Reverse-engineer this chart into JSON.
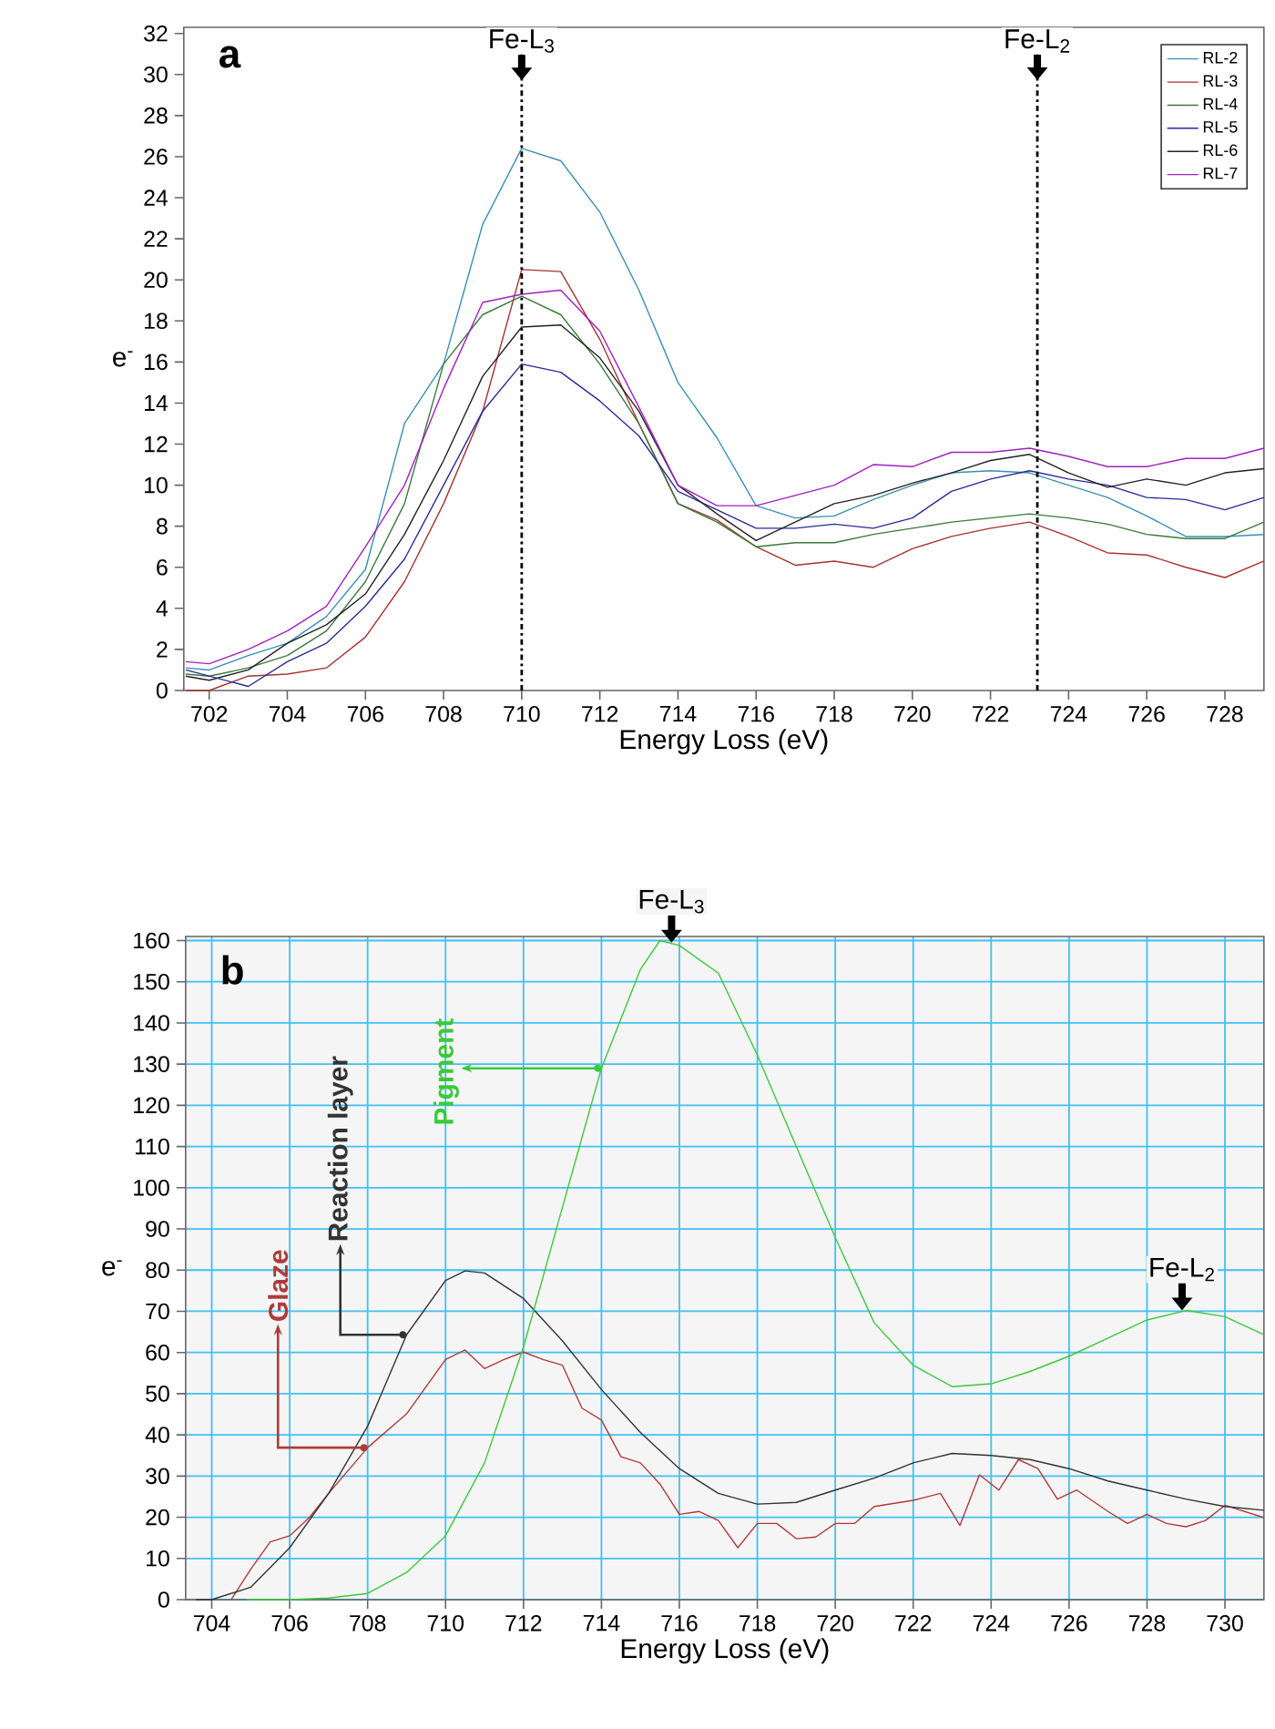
{
  "chart_data": [
    {
      "type": "line",
      "xlabel": "Energy Loss (eV)",
      "ylabel": "e$^{-}$",
      "annotations": [
        "a"
      ],
      "x": [
        701.4,
        702,
        703,
        704,
        705,
        706,
        707,
        708,
        709,
        710,
        711,
        712,
        713,
        714,
        715,
        716,
        717,
        718,
        719,
        720,
        721,
        722,
        723,
        724,
        725,
        726,
        727,
        728,
        729
      ],
      "series": [
        {
          "name": "RL-2",
          "color": "#3b8fb5",
          "values": [
            1.1,
            1.0,
            1.7,
            2.3,
            3.6,
            5.9,
            13.0,
            15.9,
            22.7,
            26.4,
            25.8,
            23.3,
            19.5,
            15.0,
            12.3,
            9.0,
            8.4,
            8.5,
            9.3,
            10.0,
            10.6,
            10.7,
            10.6,
            10.0,
            9.4,
            8.5,
            7.5,
            7.5,
            7.6
          ]
        },
        {
          "name": "RL-3",
          "color": "#a83232",
          "values": [
            0,
            0,
            0.7,
            0.8,
            1.1,
            2.6,
            5.3,
            9.1,
            13.6,
            20.5,
            20.4,
            17.1,
            13.0,
            9.1,
            8.3,
            7.0,
            6.1,
            6.3,
            6.0,
            6.9,
            7.5,
            7.9,
            8.2,
            7.5,
            6.7,
            6.6,
            6.0,
            5.5,
            6.3
          ]
        },
        {
          "name": "RL-4",
          "color": "#3a7a3a",
          "values": [
            0.8,
            0.7,
            1.1,
            1.7,
            2.9,
            5.3,
            9.1,
            15.9,
            18.3,
            19.2,
            18.3,
            15.9,
            13.0,
            9.1,
            8.2,
            7.0,
            7.2,
            7.2,
            7.6,
            7.9,
            8.2,
            8.4,
            8.6,
            8.4,
            8.1,
            7.6,
            7.4,
            7.4,
            8.2
          ]
        },
        {
          "name": "RL-5",
          "color": "#2a2a9a",
          "values": [
            1.0,
            0.7,
            0.2,
            1.4,
            2.3,
            4.1,
            6.4,
            10.0,
            13.6,
            15.9,
            15.5,
            14.1,
            12.4,
            9.7,
            8.8,
            7.9,
            7.9,
            8.1,
            7.9,
            8.4,
            9.7,
            10.3,
            10.7,
            10.3,
            10.0,
            9.4,
            9.3,
            8.8,
            9.4
          ]
        },
        {
          "name": "RL-6",
          "color": "#222222",
          "values": [
            0.7,
            0.5,
            1.0,
            2.3,
            3.2,
            4.7,
            7.6,
            11.2,
            15.3,
            17.7,
            17.8,
            16.2,
            13.6,
            10.0,
            8.6,
            7.3,
            8.2,
            9.1,
            9.5,
            10.1,
            10.6,
            11.2,
            11.5,
            10.6,
            9.9,
            10.3,
            10.0,
            10.6,
            10.8
          ]
        },
        {
          "name": "RL-7",
          "color": "#a020c0",
          "values": [
            1.4,
            1.3,
            2.0,
            2.9,
            4.1,
            7.0,
            10.0,
            14.7,
            18.9,
            19.3,
            19.5,
            17.5,
            13.8,
            10.0,
            9.0,
            9.0,
            9.5,
            10.0,
            11.0,
            10.9,
            11.6,
            11.6,
            11.8,
            11.4,
            10.9,
            10.9,
            11.3,
            11.3,
            11.8
          ]
        }
      ],
      "xlim": [
        701.35,
        729
      ],
      "ylim": [
        0,
        32.3
      ],
      "xticks": [
        702,
        704,
        706,
        708,
        710,
        712,
        714,
        716,
        718,
        720,
        722,
        724,
        726,
        728
      ],
      "yticks": [
        0,
        2,
        4,
        6,
        8,
        10,
        12,
        14,
        16,
        18,
        20,
        22,
        24,
        26,
        28,
        30,
        32
      ],
      "ref_lines": [
        {
          "axis": "x",
          "value": 710,
          "label": "Fe-L$_{3}$",
          "line_style": "dashdot"
        },
        {
          "axis": "x",
          "value": 723.2,
          "label": "Fe-L$_{2}$",
          "line_style": "dashdot"
        }
      ],
      "legend": "top right"
    },
    {
      "type": "line",
      "xlabel": "Energy Loss (eV)",
      "ylabel": "e$^{-}$",
      "annotations": [
        "b",
        {
          "text": "Fe-L$_{3}$",
          "x": 715.8,
          "y": 159.5
        },
        {
          "text": "Fe-L$_{2}$",
          "x": 728.9,
          "y": 70.2
        }
      ],
      "series": [
        {
          "name": "Glaze",
          "color": "#b03a3a",
          "x": [
            704.5,
            705,
            705.5,
            706,
            706.5,
            707,
            708,
            709,
            710,
            710.5,
            711,
            711.5,
            712,
            712.5,
            713,
            713.5,
            714,
            714.5,
            715,
            715.5,
            716,
            716.5,
            717,
            717.5,
            718,
            718.5,
            719,
            719.5,
            720,
            720.5,
            721,
            722,
            722.7,
            723.2,
            723.7,
            724.2,
            724.7,
            725.2,
            725.7,
            726.2,
            727,
            727.5,
            728,
            728.5,
            729,
            729.5,
            730,
            731
          ],
          "values": [
            0,
            7.4,
            14.0,
            15.5,
            19.9,
            25.8,
            36.9,
            45.1,
            58.3,
            60.6,
            56.1,
            58.3,
            60.1,
            58.3,
            56.9,
            46.5,
            43.6,
            34.7,
            33.2,
            28.1,
            20.7,
            21.4,
            19.2,
            12.6,
            18.5,
            18.5,
            14.8,
            15.2,
            18.5,
            18.5,
            22.6,
            24.1,
            25.8,
            18.0,
            30.3,
            26.6,
            34.0,
            31.8,
            24.4,
            26.6,
            21.4,
            18.5,
            20.7,
            18.5,
            17.7,
            19.2,
            22.9,
            19.9
          ]
        },
        {
          "name": "Reaction layer",
          "color": "#333333",
          "x": [
            703.6,
            704,
            705,
            706,
            707,
            708,
            709,
            710,
            710.5,
            711,
            712,
            713,
            714,
            715,
            716,
            717,
            718,
            719,
            720,
            721,
            722,
            723,
            724,
            725,
            726,
            727,
            728,
            729,
            730,
            731
          ],
          "values": [
            0,
            0,
            3.0,
            12.6,
            25.8,
            42.1,
            64.3,
            77.5,
            79.8,
            79.3,
            73.1,
            62.8,
            51.0,
            40.6,
            31.8,
            25.8,
            23.2,
            23.6,
            26.6,
            29.5,
            33.2,
            35.5,
            35.0,
            34.0,
            31.8,
            28.8,
            26.6,
            24.4,
            22.6,
            21.7
          ]
        },
        {
          "name": "Pigment",
          "color": "#3cc83c",
          "x": [
            704.9,
            706,
            707,
            708,
            709,
            710,
            711,
            712,
            713,
            714,
            715,
            715.5,
            716,
            717,
            718,
            719,
            720,
            721,
            722,
            723,
            724,
            725,
            726,
            727,
            728,
            729,
            730,
            731
          ],
          "values": [
            0,
            0,
            0.4,
            1.5,
            6.6,
            15.5,
            33.2,
            61.3,
            95.3,
            129,
            153,
            160,
            158.8,
            152.1,
            132.2,
            110,
            87.9,
            67.2,
            56.9,
            51.7,
            52.4,
            55.4,
            59.1,
            63.5,
            67.9,
            70.2,
            68.7,
            64.3
          ]
        }
      ],
      "xlim": [
        703.33,
        731
      ],
      "ylim": [
        0,
        161
      ],
      "xticks": [
        704,
        706,
        708,
        710,
        712,
        714,
        716,
        718,
        720,
        722,
        724,
        726,
        728,
        730
      ],
      "yticks": [
        0,
        10,
        20,
        30,
        40,
        50,
        60,
        70,
        80,
        90,
        100,
        110,
        120,
        130,
        140,
        150,
        160
      ],
      "grid": true
    }
  ]
}
